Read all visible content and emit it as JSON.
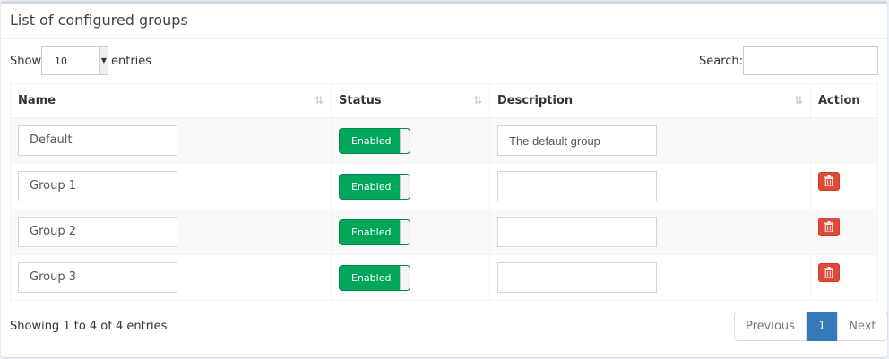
{
  "header": {
    "title": "List of configured groups"
  },
  "length": {
    "show_label": "Show",
    "value": "10",
    "entries_label": "entries"
  },
  "search": {
    "label": "Search:",
    "value": ""
  },
  "table": {
    "columns": [
      "Name",
      "Status",
      "Description",
      "Action"
    ],
    "rows": [
      {
        "name": "Default",
        "status": "Enabled",
        "description": "The default group",
        "deletable": false
      },
      {
        "name": "Group 1",
        "status": "Enabled",
        "description": "",
        "deletable": true
      },
      {
        "name": "Group 2",
        "status": "Enabled",
        "description": "",
        "deletable": true
      },
      {
        "name": "Group 3",
        "status": "Enabled",
        "description": "",
        "deletable": true
      }
    ]
  },
  "footer": {
    "info": "Showing 1 to 4 of 4 entries",
    "previous": "Previous",
    "page": "1",
    "next": "Next"
  },
  "colors": {
    "enabled": "#00a65a",
    "delete": "#dd4b39",
    "active_page": "#337ab7"
  }
}
